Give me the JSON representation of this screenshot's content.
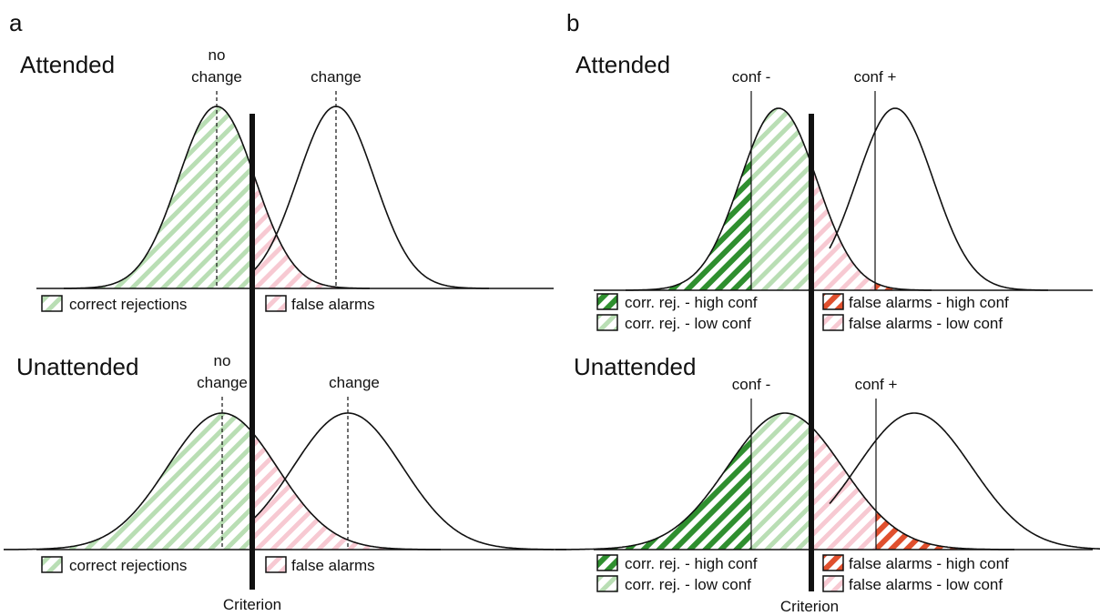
{
  "panel_a": {
    "letter": "a",
    "attended": {
      "title": "Attended",
      "no_change_line1": "no",
      "no_change_line2": "change",
      "change": "change",
      "legend": [
        "correct rejections",
        "false alarms"
      ]
    },
    "unattended": {
      "title": "Unattended",
      "no_change_line1": "no",
      "no_change_line2": "change",
      "change": "change",
      "legend": [
        "correct rejections",
        "false alarms"
      ]
    },
    "criterion": "Criterion"
  },
  "panel_b": {
    "letter": "b",
    "attended": {
      "title": "Attended",
      "conf_minus": "conf -",
      "conf_plus": "conf +",
      "legend": [
        "corr. rej. - high conf",
        "corr. rej. - low conf",
        "false alarms - high conf",
        "false alarms - low conf"
      ]
    },
    "unattended": {
      "title": "Unattended",
      "conf_minus": "conf -",
      "conf_plus": "conf +",
      "legend": [
        "corr. rej. - high conf",
        "corr. rej. - low conf",
        "false alarms - high conf",
        "false alarms - low conf"
      ]
    },
    "criterion": "Criterion"
  },
  "colors": {
    "cr_high": "#2f8f2f",
    "cr_low": "#b9deb4",
    "fa_high": "#e0502e",
    "fa_low": "#f7c9d2",
    "stroke": "#111111"
  }
}
